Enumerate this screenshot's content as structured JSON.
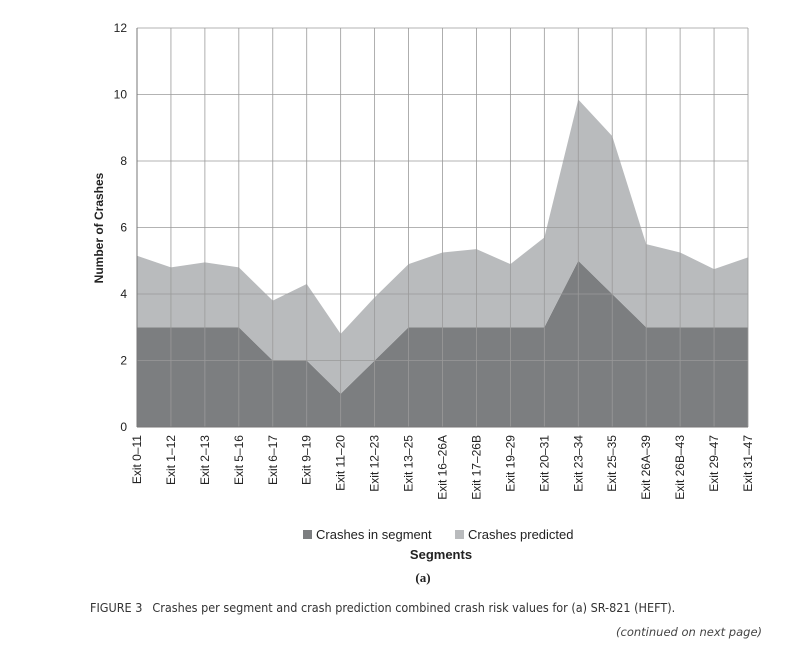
{
  "chart_data": {
    "type": "area",
    "stacked": true,
    "categories": [
      "Exit 0–11",
      "Exit 1–12",
      "Exit 2–13",
      "Exit 5–16",
      "Exit 6–17",
      "Exit 9–19",
      "Exit 11–20",
      "Exit 12–23",
      "Exit 13–25",
      "Exit 16–26A",
      "Exit 17–26B",
      "Exit 19–29",
      "Exit 20–31",
      "Exit 23–34",
      "Exit 25–35",
      "Exit 26A–39",
      "Exit 26B–43",
      "Exit 29–47",
      "Exit 31–47"
    ],
    "series": [
      {
        "name": "Crashes in segment",
        "color": "#7c7e80",
        "values": [
          3,
          3,
          3,
          3,
          2,
          2,
          1,
          2,
          3,
          3,
          3,
          3,
          3,
          5,
          4,
          3,
          3,
          3,
          3
        ]
      },
      {
        "name": "Crashes predicted",
        "color": "#b9bbbd",
        "values": [
          2.15,
          1.8,
          1.95,
          1.8,
          1.8,
          2.3,
          1.8,
          1.9,
          1.9,
          2.25,
          2.35,
          1.9,
          2.7,
          4.85,
          4.75,
          2.5,
          2.25,
          1.75,
          2.1
        ]
      }
    ],
    "xlabel": "Segments",
    "ylabel": "Number of Crashes",
    "ylim": [
      0,
      12
    ],
    "yticks": [
      0,
      2,
      4,
      6,
      8,
      10,
      12
    ],
    "grid": true,
    "legend_position": "bottom",
    "subcaption": "(a)"
  },
  "figure": {
    "label": "FIGURE 3",
    "caption": "Crashes per segment and crash prediction combined crash risk values for (a) SR-821 (HEFT).",
    "continued": "(continued on next page)"
  }
}
